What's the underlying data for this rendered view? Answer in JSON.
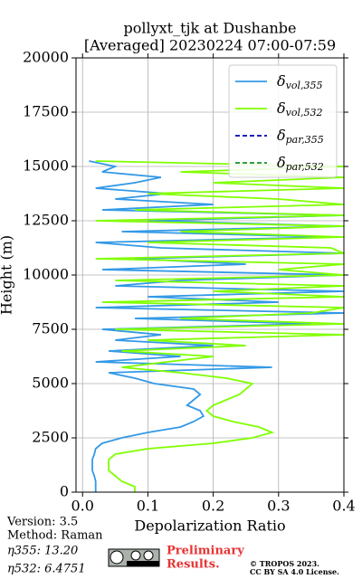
{
  "chart_data": {
    "type": "line",
    "title": "pollyxt_tjk at Dushanbe",
    "subtitle": "[Averaged] 20230224 07:00-07:59",
    "xlabel": "Depolarization Ratio",
    "ylabel": "Height (m)",
    "y": [
      0,
      250,
      500,
      750,
      1000,
      1250,
      1500,
      1750,
      2000,
      2250,
      2500,
      2750,
      3000,
      3250,
      3500,
      3750,
      4000,
      4250,
      4500,
      4750,
      5000,
      5250,
      5500,
      5750,
      6000,
      6250,
      6500,
      6750,
      7000,
      7250,
      7500,
      7750,
      8000,
      8250,
      8500,
      8750,
      9000,
      9250,
      9500,
      9750,
      10000,
      10250,
      10500,
      10750,
      11000,
      11250,
      11500,
      11750,
      12000,
      12250,
      12500,
      12750,
      13000,
      13250,
      13500,
      13750,
      14000,
      14250,
      14500,
      14750,
      15000,
      15250
    ],
    "series": [
      {
        "name": "δvol,355",
        "color": "#3399e6",
        "dash": false,
        "values": [
          0.02,
          0.02,
          0.02,
          0.018,
          0.015,
          0.015,
          0.015,
          0.018,
          0.02,
          0.03,
          0.06,
          0.1,
          0.15,
          0.17,
          0.185,
          0.18,
          0.16,
          0.17,
          0.18,
          0.17,
          0.11,
          0.08,
          0.04,
          0.29,
          0.02,
          0.15,
          0.04,
          0.2,
          0.05,
          0.12,
          0.03,
          0.35,
          0.08,
          0.4,
          0.02,
          0.3,
          0.1,
          0.4,
          0.05,
          0.15,
          0.4,
          0.03,
          0.25,
          0.08,
          0.4,
          0.12,
          0.02,
          0.38,
          0.06,
          0.4,
          0.1,
          0.4,
          0.03,
          0.2,
          0.05,
          0.13,
          0.02,
          0.08,
          0.12,
          0.03,
          0.05,
          0.01
        ]
      },
      {
        "name": "δvol,532",
        "color": "#80ff00",
        "dash": false,
        "values": [
          0.08,
          0.08,
          0.06,
          0.05,
          0.04,
          0.04,
          0.04,
          0.05,
          0.1,
          0.2,
          0.26,
          0.29,
          0.27,
          0.23,
          0.2,
          0.19,
          0.2,
          0.22,
          0.24,
          0.25,
          0.26,
          0.22,
          0.15,
          0.06,
          0.13,
          0.2,
          0.06,
          0.25,
          0.1,
          0.4,
          0.05,
          0.4,
          0.15,
          0.35,
          0.4,
          0.03,
          0.4,
          0.2,
          0.4,
          0.05,
          0.4,
          0.3,
          0.4,
          0.02,
          0.4,
          0.38,
          0.1,
          0.4,
          0.15,
          0.4,
          0.02,
          0.4,
          0.08,
          0.4,
          0.3,
          0.1,
          0.4,
          0.2,
          0.4,
          0.15,
          0.4,
          0.02
        ]
      },
      {
        "name": "δpar,355",
        "color": "#0000b3",
        "dash": true,
        "values": [
          null,
          null,
          null,
          null,
          null,
          null,
          null,
          null,
          null,
          null,
          null,
          null,
          null,
          null,
          null,
          null,
          null,
          null,
          null,
          null,
          null,
          null,
          null,
          null,
          null,
          null,
          null,
          null,
          null,
          null,
          null,
          null,
          null,
          null,
          null,
          null,
          null,
          null,
          null,
          null,
          null,
          null,
          null,
          null,
          null,
          null,
          null,
          null,
          null,
          null,
          null,
          null,
          null,
          null,
          null,
          null,
          null,
          null,
          null,
          null,
          null,
          null
        ]
      },
      {
        "name": "δpar,532",
        "color": "#1a8c33",
        "dash": true,
        "values": [
          null,
          null,
          null,
          null,
          null,
          null,
          null,
          null,
          null,
          null,
          null,
          null,
          null,
          null,
          null,
          null,
          null,
          null,
          null,
          null,
          null,
          null,
          null,
          null,
          null,
          null,
          null,
          null,
          null,
          null,
          null,
          null,
          null,
          null,
          null,
          null,
          null,
          null,
          null,
          null,
          null,
          null,
          null,
          null,
          null,
          null,
          null,
          null,
          null,
          null,
          null,
          null,
          null,
          null,
          null,
          null,
          null,
          null,
          null,
          null,
          null,
          null
        ]
      }
    ],
    "xlim": [
      -0.01,
      0.4
    ],
    "xticks": [
      {
        "value": 0,
        "label": "0.0"
      },
      0.1,
      0.2,
      0.3,
      0.4
    ],
    "ylim": [
      0,
      20000
    ],
    "yticks": [
      0,
      2500,
      5000,
      7500,
      10000,
      12500,
      15000,
      17500,
      20000
    ],
    "grid": true,
    "legend": "upper right"
  },
  "footer": {
    "version": "Version: 3.5",
    "method": "Method: Raman",
    "eta355": "η355:  13.20",
    "eta532": "η532: 6.4751",
    "preliminary": "Preliminary",
    "results": "Results.",
    "copyright": "© TROPOS 2023.",
    "license": "CC BY SA 4.0 License."
  }
}
